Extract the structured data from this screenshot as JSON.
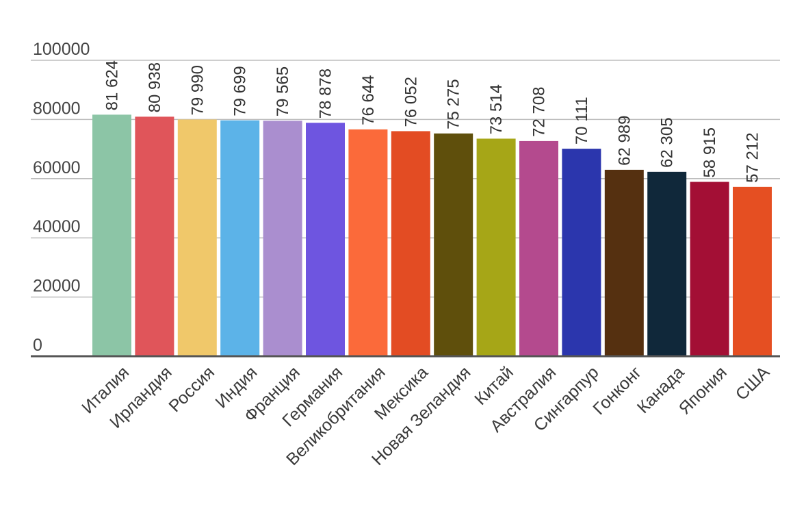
{
  "chart_data": {
    "type": "bar",
    "title": "",
    "xlabel": "",
    "ylabel": "",
    "ylim": [
      0,
      100000
    ],
    "yticks": [
      0,
      20000,
      40000,
      60000,
      80000,
      100000
    ],
    "ytick_labels": [
      "0",
      "20000",
      "40000",
      "60000",
      "80000",
      "100000"
    ],
    "grid": true,
    "legend": "none",
    "categories": [
      "Италия",
      "Ирландия",
      "Россия",
      "Индия",
      "Франция",
      "Германия",
      "Великобритания",
      "Мексика",
      "Новая Зеландия",
      "Китай",
      "Австралия",
      "Сингарпур",
      "Гонконг",
      "Канада",
      "Япония",
      "США"
    ],
    "values": [
      81624,
      80938,
      79990,
      79699,
      79565,
      78878,
      76644,
      76052,
      75275,
      73514,
      72708,
      70111,
      62989,
      62305,
      58915,
      57212
    ],
    "value_labels": [
      "81 624",
      "80 938",
      "79 990",
      "79 699",
      "79 565",
      "78 878",
      "76 644",
      "76 052",
      "75 275",
      "73 514",
      "72 708",
      "70 111",
      "62 989",
      "62 305",
      "58 915",
      "57 212"
    ],
    "colors": [
      "#8cc5a6",
      "#e0555a",
      "#f0c86a",
      "#5cb3e8",
      "#aa8ecf",
      "#6e55e0",
      "#fb6a3a",
      "#e34c23",
      "#5f4f0c",
      "#a6a617",
      "#b44a8e",
      "#2b36ad",
      "#553010",
      "#10283a",
      "#a30f35",
      "#e54f22"
    ]
  }
}
